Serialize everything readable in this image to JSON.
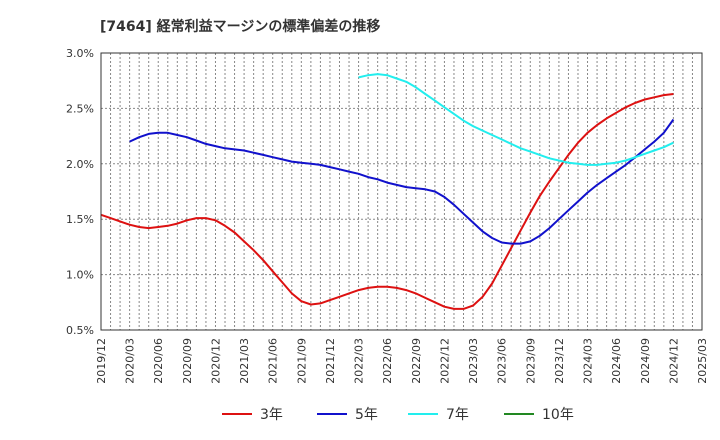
{
  "title": "[7464]  経常利益マージンの標準偏差の推移",
  "chart_data": {
    "type": "line",
    "title": "[7464]  経常利益マージンの標準偏差の推移",
    "xlabel": "",
    "ylabel": "",
    "x_ticks": [
      "2019/12",
      "2020/03",
      "2020/06",
      "2020/09",
      "2020/12",
      "2021/03",
      "2021/06",
      "2021/09",
      "2021/12",
      "2022/03",
      "2022/06",
      "2022/09",
      "2022/12",
      "2023/03",
      "2023/06",
      "2023/09",
      "2023/12",
      "2024/03",
      "2024/06",
      "2024/09",
      "2024/12",
      "2025/03"
    ],
    "y_ticks": [
      "0.5%",
      "1.0%",
      "1.5%",
      "2.0%",
      "2.5%",
      "3.0%"
    ],
    "ylim": [
      0.5,
      3.0
    ],
    "grid": true,
    "legend_position": "bottom",
    "series": [
      {
        "name": "3年",
        "color": "#dd1111",
        "values": [
          [
            "2019/12",
            1.54
          ],
          [
            "2020/01",
            1.51
          ],
          [
            "2020/02",
            1.48
          ],
          [
            "2020/03",
            1.45
          ],
          [
            "2020/04",
            1.43
          ],
          [
            "2020/05",
            1.42
          ],
          [
            "2020/06",
            1.43
          ],
          [
            "2020/07",
            1.44
          ],
          [
            "2020/08",
            1.46
          ],
          [
            "2020/09",
            1.49
          ],
          [
            "2020/10",
            1.51
          ],
          [
            "2020/11",
            1.51
          ],
          [
            "2020/12",
            1.49
          ],
          [
            "2021/01",
            1.44
          ],
          [
            "2021/02",
            1.38
          ],
          [
            "2021/03",
            1.3
          ],
          [
            "2021/04",
            1.22
          ],
          [
            "2021/05",
            1.13
          ],
          [
            "2021/06",
            1.03
          ],
          [
            "2021/07",
            0.93
          ],
          [
            "2021/08",
            0.83
          ],
          [
            "2021/09",
            0.76
          ],
          [
            "2021/10",
            0.73
          ],
          [
            "2021/11",
            0.74
          ],
          [
            "2021/12",
            0.77
          ],
          [
            "2022/01",
            0.8
          ],
          [
            "2022/02",
            0.83
          ],
          [
            "2022/03",
            0.86
          ],
          [
            "2022/04",
            0.88
          ],
          [
            "2022/05",
            0.89
          ],
          [
            "2022/06",
            0.89
          ],
          [
            "2022/07",
            0.88
          ],
          [
            "2022/08",
            0.86
          ],
          [
            "2022/09",
            0.83
          ],
          [
            "2022/10",
            0.79
          ],
          [
            "2022/11",
            0.75
          ],
          [
            "2022/12",
            0.71
          ],
          [
            "2023/01",
            0.69
          ],
          [
            "2023/02",
            0.69
          ],
          [
            "2023/03",
            0.72
          ],
          [
            "2023/04",
            0.8
          ],
          [
            "2023/05",
            0.92
          ],
          [
            "2023/06",
            1.08
          ],
          [
            "2023/07",
            1.24
          ],
          [
            "2023/08",
            1.4
          ],
          [
            "2023/09",
            1.56
          ],
          [
            "2023/10",
            1.71
          ],
          [
            "2023/11",
            1.84
          ],
          [
            "2023/12",
            1.96
          ],
          [
            "2024/01",
            2.08
          ],
          [
            "2024/02",
            2.19
          ],
          [
            "2024/03",
            2.28
          ],
          [
            "2024/04",
            2.35
          ],
          [
            "2024/05",
            2.41
          ],
          [
            "2024/06",
            2.46
          ],
          [
            "2024/07",
            2.51
          ],
          [
            "2024/08",
            2.55
          ],
          [
            "2024/09",
            2.58
          ],
          [
            "2024/10",
            2.6
          ],
          [
            "2024/11",
            2.62
          ],
          [
            "2024/12",
            2.63
          ]
        ]
      },
      {
        "name": "5年",
        "color": "#1111cc",
        "values": [
          [
            "2020/03",
            2.2
          ],
          [
            "2020/04",
            2.24
          ],
          [
            "2020/05",
            2.27
          ],
          [
            "2020/06",
            2.28
          ],
          [
            "2020/07",
            2.28
          ],
          [
            "2020/08",
            2.26
          ],
          [
            "2020/09",
            2.24
          ],
          [
            "2020/10",
            2.21
          ],
          [
            "2020/11",
            2.18
          ],
          [
            "2020/12",
            2.16
          ],
          [
            "2021/01",
            2.14
          ],
          [
            "2021/02",
            2.13
          ],
          [
            "2021/03",
            2.12
          ],
          [
            "2021/04",
            2.1
          ],
          [
            "2021/05",
            2.08
          ],
          [
            "2021/06",
            2.06
          ],
          [
            "2021/07",
            2.04
          ],
          [
            "2021/08",
            2.02
          ],
          [
            "2021/09",
            2.01
          ],
          [
            "2021/10",
            2.0
          ],
          [
            "2021/11",
            1.99
          ],
          [
            "2021/12",
            1.97
          ],
          [
            "2022/01",
            1.95
          ],
          [
            "2022/02",
            1.93
          ],
          [
            "2022/03",
            1.91
          ],
          [
            "2022/04",
            1.88
          ],
          [
            "2022/05",
            1.86
          ],
          [
            "2022/06",
            1.83
          ],
          [
            "2022/07",
            1.81
          ],
          [
            "2022/08",
            1.79
          ],
          [
            "2022/09",
            1.78
          ],
          [
            "2022/10",
            1.77
          ],
          [
            "2022/11",
            1.75
          ],
          [
            "2022/12",
            1.7
          ],
          [
            "2023/01",
            1.63
          ],
          [
            "2023/02",
            1.55
          ],
          [
            "2023/03",
            1.47
          ],
          [
            "2023/04",
            1.39
          ],
          [
            "2023/05",
            1.33
          ],
          [
            "2023/06",
            1.29
          ],
          [
            "2023/07",
            1.28
          ],
          [
            "2023/08",
            1.28
          ],
          [
            "2023/09",
            1.3
          ],
          [
            "2023/10",
            1.35
          ],
          [
            "2023/11",
            1.42
          ],
          [
            "2023/12",
            1.5
          ],
          [
            "2024/01",
            1.58
          ],
          [
            "2024/02",
            1.66
          ],
          [
            "2024/03",
            1.74
          ],
          [
            "2024/04",
            1.81
          ],
          [
            "2024/05",
            1.87
          ],
          [
            "2024/06",
            1.93
          ],
          [
            "2024/07",
            1.99
          ],
          [
            "2024/08",
            2.06
          ],
          [
            "2024/09",
            2.13
          ],
          [
            "2024/10",
            2.2
          ],
          [
            "2024/11",
            2.28
          ],
          [
            "2024/12",
            2.4
          ]
        ]
      },
      {
        "name": "7年",
        "color": "#22eeee",
        "values": [
          [
            "2022/03",
            2.78
          ],
          [
            "2022/04",
            2.8
          ],
          [
            "2022/05",
            2.81
          ],
          [
            "2022/06",
            2.8
          ],
          [
            "2022/07",
            2.77
          ],
          [
            "2022/08",
            2.74
          ],
          [
            "2022/09",
            2.69
          ],
          [
            "2022/10",
            2.63
          ],
          [
            "2022/11",
            2.57
          ],
          [
            "2022/12",
            2.51
          ],
          [
            "2023/01",
            2.45
          ],
          [
            "2023/02",
            2.39
          ],
          [
            "2023/03",
            2.34
          ],
          [
            "2023/04",
            2.3
          ],
          [
            "2023/05",
            2.26
          ],
          [
            "2023/06",
            2.22
          ],
          [
            "2023/07",
            2.18
          ],
          [
            "2023/08",
            2.14
          ],
          [
            "2023/09",
            2.11
          ],
          [
            "2023/10",
            2.08
          ],
          [
            "2023/11",
            2.05
          ],
          [
            "2023/12",
            2.03
          ],
          [
            "2024/01",
            2.01
          ],
          [
            "2024/02",
            2.0
          ],
          [
            "2024/03",
            1.99
          ],
          [
            "2024/04",
            1.99
          ],
          [
            "2024/05",
            2.0
          ],
          [
            "2024/06",
            2.01
          ],
          [
            "2024/07",
            2.03
          ],
          [
            "2024/08",
            2.06
          ],
          [
            "2024/09",
            2.09
          ],
          [
            "2024/10",
            2.12
          ],
          [
            "2024/11",
            2.15
          ],
          [
            "2024/12",
            2.19
          ]
        ]
      },
      {
        "name": "10年",
        "color": "#228822",
        "values": []
      }
    ]
  }
}
